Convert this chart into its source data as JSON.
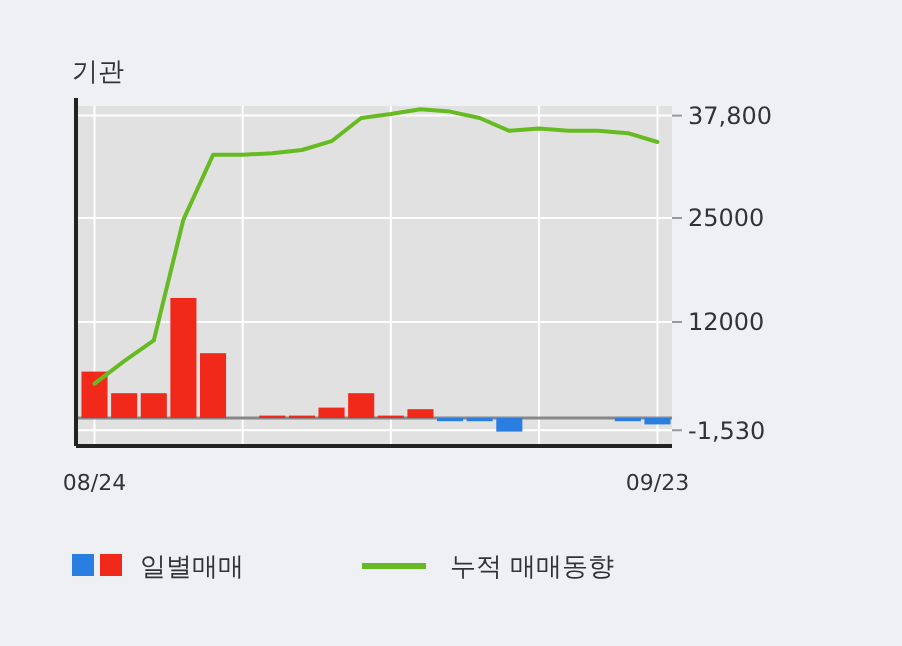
{
  "chart_data": {
    "type": "bar",
    "title": "기관",
    "categories": [
      "08/24",
      null,
      null,
      null,
      null,
      null,
      null,
      null,
      null,
      null,
      null,
      null,
      null,
      null,
      null,
      null,
      null,
      null,
      null,
      "09/23"
    ],
    "series": [
      {
        "name": "일별매매",
        "colors": [
          "#f0291a",
          "#f0291a",
          "#f0291a",
          "#f0291a",
          "#f0291a",
          "#f0291a",
          "#f0291a",
          "#f0291a",
          "#f0291a",
          "#f0291a",
          "#f0291a",
          "#f0291a",
          "#2a7de1",
          "#2a7de1",
          "#2a7de1",
          "#2a7de1",
          "#2a7de1",
          "#2a7de1",
          "#2a7de1",
          "#2a7de1"
        ],
        "values": [
          5800,
          3100,
          3100,
          15000,
          8100,
          0,
          300,
          300,
          1300,
          3100,
          300,
          1100,
          -400,
          -400,
          -1700,
          0,
          0,
          0,
          -400,
          -800
        ]
      },
      {
        "name": "누적 매매동향",
        "type": "line",
        "color": "#66bb22",
        "values": [
          4300,
          7100,
          9700,
          24800,
          32900,
          32900,
          33100,
          33500,
          34600,
          37500,
          38000,
          38600,
          38300,
          37500,
          35900,
          36200,
          35900,
          35900,
          35600,
          34500
        ]
      }
    ],
    "ylim": [
      -3500,
      39000
    ],
    "yticks": [
      {
        "value": 37800,
        "label": "37,800"
      },
      25000,
      12000,
      {
        "value": -1530,
        "label": "-1,530"
      }
    ],
    "grid": true,
    "legend": "bottom"
  }
}
